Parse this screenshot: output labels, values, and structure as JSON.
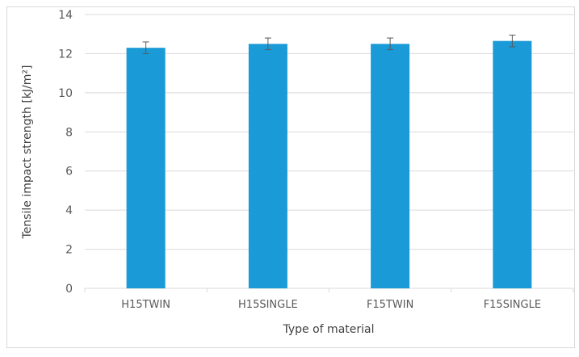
{
  "chart_data": {
    "type": "bar",
    "title": "",
    "xlabel": "Type of material",
    "ylabel": "Tensile impact strength [kJ/m²]",
    "categories": [
      "H15TWIN",
      "H15SINGLE",
      "F15TWIN",
      "F15SINGLE"
    ],
    "values": [
      12.3,
      12.5,
      12.5,
      12.65
    ],
    "error": [
      0.3,
      0.3,
      0.3,
      0.3
    ],
    "ylim": [
      0,
      14
    ],
    "yticks": [
      0,
      2,
      4,
      6,
      8,
      10,
      12,
      14
    ],
    "grid": true,
    "legend": "none",
    "colors": {
      "bar": "#1a9ad7",
      "grid": "#d9d9d9",
      "error": "#595959"
    }
  }
}
